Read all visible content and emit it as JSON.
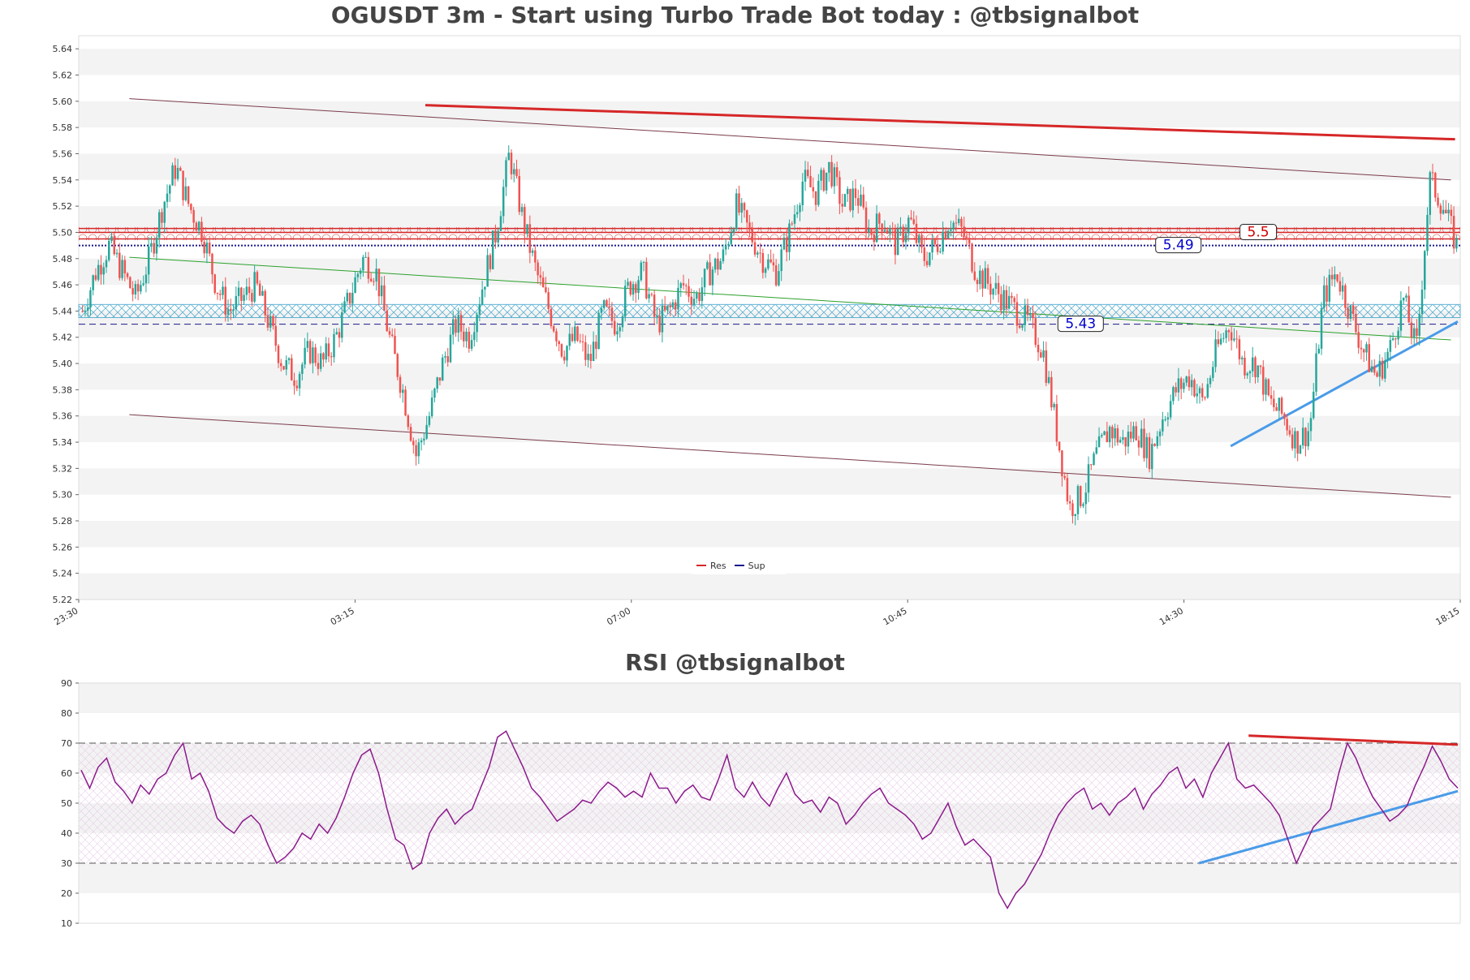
{
  "chart_data": [
    {
      "type": "candlestick",
      "title": "OGUSDT 3m - Start using Turbo Trade Bot today : @tbsignalbot",
      "ylim": [
        5.22,
        5.65
      ],
      "yticks": [
        "5.22",
        "5.24",
        "5.26",
        "5.28",
        "5.30",
        "5.32",
        "5.34",
        "5.36",
        "5.38",
        "5.40",
        "5.42",
        "5.44",
        "5.46",
        "5.48",
        "5.50",
        "5.52",
        "5.54",
        "5.56",
        "5.58",
        "5.60",
        "5.62",
        "5.64"
      ],
      "xticks": [
        "23:30",
        "03:15",
        "07:00",
        "10:45",
        "14:30",
        "18:15"
      ],
      "grid": "horizontal bands",
      "legend_position": "bottom-center",
      "legend": [
        {
          "name": "Res",
          "color": "#d62728"
        },
        {
          "name": "Sup",
          "color": "#1a1a8c"
        }
      ],
      "candle_colors": {
        "up": "#26a69a",
        "down": "#ef5350"
      },
      "close_path": [
        5.44,
        5.47,
        5.49,
        5.47,
        5.45,
        5.48,
        5.52,
        5.55,
        5.52,
        5.5,
        5.46,
        5.44,
        5.45,
        5.46,
        5.43,
        5.4,
        5.39,
        5.41,
        5.4,
        5.42,
        5.45,
        5.48,
        5.47,
        5.42,
        5.38,
        5.33,
        5.36,
        5.4,
        5.43,
        5.42,
        5.46,
        5.5,
        5.56,
        5.51,
        5.47,
        5.44,
        5.41,
        5.42,
        5.4,
        5.44,
        5.43,
        5.46,
        5.47,
        5.43,
        5.44,
        5.46,
        5.45,
        5.47,
        5.48,
        5.52,
        5.5,
        5.48,
        5.47,
        5.5,
        5.54,
        5.53,
        5.55,
        5.52,
        5.53,
        5.5,
        5.51,
        5.49,
        5.51,
        5.48,
        5.49,
        5.51,
        5.5,
        5.47,
        5.46,
        5.45,
        5.44,
        5.43,
        5.41,
        5.35,
        5.29,
        5.3,
        5.33,
        5.35,
        5.34,
        5.35,
        5.33,
        5.36,
        5.38,
        5.39,
        5.37,
        5.41,
        5.43,
        5.4,
        5.4,
        5.37,
        5.36,
        5.34,
        5.35,
        5.45,
        5.47,
        5.44,
        5.41,
        5.39,
        5.41,
        5.45,
        5.41,
        5.54,
        5.52,
        5.49
      ],
      "annotations": [
        {
          "label": "5.5",
          "value": 5.5,
          "color": "#cc0000"
        },
        {
          "label": "5.49",
          "value": 5.49,
          "color": "#0000cc"
        },
        {
          "label": "5.43",
          "value": 5.43,
          "color": "#0000cc"
        }
      ],
      "resistance_levels": [
        5.495,
        5.5,
        5.503
      ],
      "support_levels": [
        5.49,
        5.43
      ],
      "support_zone": [
        5.435,
        5.445
      ],
      "channel_upper": [
        5.602,
        5.54
      ],
      "channel_lower": [
        5.361,
        5.298
      ],
      "red_trendline": [
        5.597,
        5.571
      ],
      "green_trendline": [
        5.481,
        5.418
      ],
      "blue_trendline": [
        5.337,
        5.432
      ]
    },
    {
      "type": "line",
      "title": "RSI @tbsignalbot",
      "ylim": [
        10,
        90
      ],
      "yticks": [
        "10",
        "20",
        "30",
        "40",
        "50",
        "60",
        "70",
        "80",
        "90"
      ],
      "levels": [
        30,
        70
      ],
      "series": [
        {
          "color": "#8b1a8b",
          "values": [
            61,
            55,
            62,
            65,
            57,
            54,
            50,
            56,
            53,
            58,
            60,
            66,
            70,
            58,
            60,
            54,
            45,
            42,
            40,
            44,
            46,
            43,
            36,
            30,
            32,
            35,
            40,
            38,
            43,
            40,
            45,
            52,
            60,
            66,
            68,
            60,
            48,
            38,
            36,
            28,
            30,
            40,
            45,
            48,
            43,
            46,
            48,
            55,
            62,
            72,
            74,
            68,
            62,
            55,
            52,
            48,
            44,
            46,
            48,
            51,
            50,
            54,
            57,
            55,
            52,
            54,
            52,
            60,
            55,
            55,
            50,
            54,
            56,
            52,
            51,
            58,
            66,
            55,
            52,
            57,
            52,
            49,
            55,
            60,
            53,
            50,
            51,
            47,
            52,
            50,
            43,
            46,
            50,
            53,
            55,
            50,
            48,
            46,
            43,
            38,
            40,
            45,
            50,
            42,
            36,
            38,
            35,
            32,
            20,
            15,
            20,
            23,
            28,
            33,
            40,
            46,
            50,
            53,
            55,
            48,
            50,
            46,
            50,
            52,
            55,
            48,
            53,
            56,
            60,
            62,
            55,
            58,
            52,
            60,
            65,
            70,
            58,
            55,
            56,
            53,
            50,
            46,
            38,
            30,
            36,
            42,
            45,
            48,
            60,
            70,
            65,
            58,
            52,
            48,
            44,
            46,
            49,
            56,
            62,
            69,
            64,
            58,
            55
          ]
        }
      ],
      "trendlines": [
        {
          "color": "#d62728",
          "values": [
            72.5,
            69.5
          ]
        },
        {
          "color": "#4a9be8",
          "values": [
            30,
            54
          ]
        }
      ]
    }
  ]
}
